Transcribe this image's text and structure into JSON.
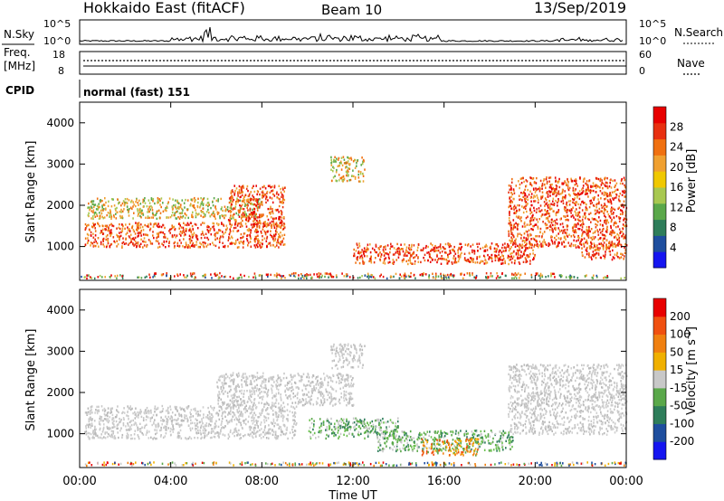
{
  "header": {
    "station": "Hokkaido East (fitACF)",
    "beam": "Beam 10",
    "date": "13/Sep/2019"
  },
  "noise_panel": {
    "left_label": "N.Sky",
    "right_label": "N.Search",
    "left_ticks": [
      "10^5",
      "10^0"
    ],
    "right_ticks": [
      "10^5",
      "10^0"
    ]
  },
  "freq_panel": {
    "left_label_1": "Freq.",
    "left_label_2": "[MHz]",
    "left_ticks": [
      "18",
      "8"
    ],
    "right_label": "Nave",
    "right_ticks": [
      "60",
      "0"
    ]
  },
  "cpid_panel": {
    "label": "CPID",
    "mode": "normal (fast) 151"
  },
  "chart_data": [
    {
      "type": "heatmap",
      "title": "",
      "ylabel": "Slant Range [km]",
      "ylim": [
        180,
        4500
      ],
      "y_ticks": [
        "1000",
        "2000",
        "3000",
        "4000"
      ],
      "colorbar_label": "Power [dB]",
      "colorbar_ticks": [
        "4",
        "8",
        "12",
        "16",
        "20",
        "24",
        "28"
      ],
      "colorbar_colors": [
        "#1515f0",
        "#1e4e9e",
        "#2e7d5a",
        "#5aa84a",
        "#a8c850",
        "#f0c800",
        "#f0a030",
        "#f07010",
        "#e83010",
        "#e80000"
      ],
      "scatter_bands": [
        {
          "x": [
            0,
            24
          ],
          "y": [
            250,
            330
          ],
          "level": "mixed"
        },
        {
          "x": [
            3,
            21
          ],
          "y": [
            330,
            380
          ],
          "level": "high"
        },
        {
          "x": [
            0.2,
            9
          ],
          "y": [
            1000,
            1600
          ],
          "level": "high"
        },
        {
          "x": [
            0.3,
            8
          ],
          "y": [
            1700,
            2200
          ],
          "level": "mid"
        },
        {
          "x": [
            6.5,
            9
          ],
          "y": [
            1500,
            2500
          ],
          "level": "high"
        },
        {
          "x": [
            11,
            12.5
          ],
          "y": [
            2600,
            3200
          ],
          "level": "mid"
        },
        {
          "x": [
            12,
            20
          ],
          "y": [
            600,
            1100
          ],
          "level": "high"
        },
        {
          "x": [
            18.8,
            24
          ],
          "y": [
            1000,
            2700
          ],
          "level": "high"
        },
        {
          "x": [
            22,
            24
          ],
          "y": [
            700,
            1100
          ],
          "level": "high"
        }
      ]
    },
    {
      "type": "heatmap",
      "title": "",
      "ylabel": "Slant Range [km]",
      "ylim": [
        180,
        4500
      ],
      "y_ticks": [
        "1000",
        "2000",
        "3000",
        "4000"
      ],
      "colorbar_label": "Velocity [m s^-1]",
      "colorbar_ticks": [
        "200",
        "100",
        "50",
        "15",
        "-15",
        "-50",
        "-100",
        "-200"
      ],
      "colorbar_colors": [
        "#1515f0",
        "#1e4e9e",
        "#2e7d5a",
        "#5aa84a",
        "#c8c8c8",
        "#f0b000",
        "#f08010",
        "#f05010",
        "#e80000"
      ],
      "scatter_bands": [
        {
          "x": [
            0,
            24
          ],
          "y": [
            250,
            330
          ],
          "level": "mixed"
        },
        {
          "x": [
            0.2,
            9.5
          ],
          "y": [
            900,
            1700
          ],
          "level": "grey"
        },
        {
          "x": [
            6,
            12
          ],
          "y": [
            1700,
            2500
          ],
          "level": "grey"
        },
        {
          "x": [
            11,
            12.5
          ],
          "y": [
            2600,
            3200
          ],
          "level": "grey"
        },
        {
          "x": [
            10,
            14
          ],
          "y": [
            900,
            1400
          ],
          "level": "green"
        },
        {
          "x": [
            13,
            19
          ],
          "y": [
            600,
            1100
          ],
          "level": "green"
        },
        {
          "x": [
            15,
            17.5
          ],
          "y": [
            500,
            900
          ],
          "level": "orange"
        },
        {
          "x": [
            18.8,
            24
          ],
          "y": [
            1000,
            2700
          ],
          "level": "grey"
        }
      ]
    }
  ],
  "x_axis": {
    "label": "Time UT",
    "ticks": [
      "00:00",
      "04:00",
      "08:00",
      "12:00",
      "16:00",
      "20:00",
      "00:00"
    ]
  }
}
